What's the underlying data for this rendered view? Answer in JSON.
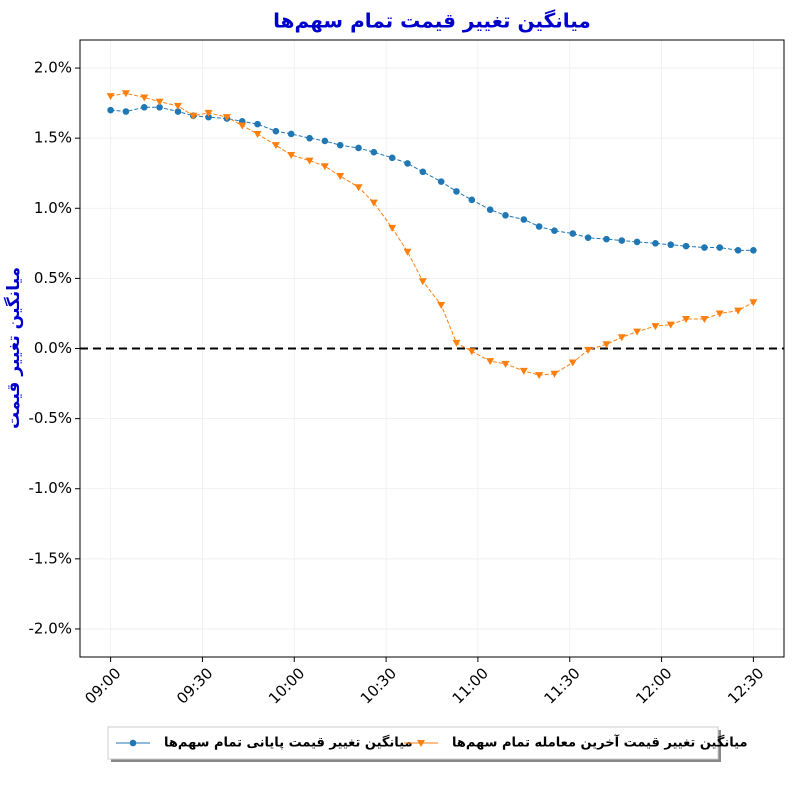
{
  "chart_data": {
    "type": "line",
    "title": "میانگین تغییر قیمت تمام سهم‌ها",
    "y_label": "میانگین تغییر قیمت",
    "x": [
      "09:00",
      "09:05",
      "09:11",
      "09:16",
      "09:22",
      "09:27",
      "09:32",
      "09:38",
      "09:43",
      "09:48",
      "09:54",
      "09:59",
      "10:05",
      "10:10",
      "10:15",
      "10:21",
      "10:26",
      "10:32",
      "10:37",
      "10:42",
      "10:48",
      "10:53",
      "10:58",
      "11:04",
      "11:09",
      "11:15",
      "11:20",
      "11:25",
      "11:31",
      "11:36",
      "11:42",
      "11:47",
      "11:52",
      "11:58",
      "12:03",
      "12:08",
      "12:14",
      "12:19",
      "12:25",
      "12:30"
    ],
    "series": [
      {
        "name": "میانگین تغییر قیمت پایانی تمام سهم‌ها",
        "color": "#1f77b4",
        "marker": "circle",
        "values": [
          1.7,
          1.69,
          1.72,
          1.72,
          1.69,
          1.66,
          1.65,
          1.64,
          1.62,
          1.6,
          1.55,
          1.53,
          1.5,
          1.48,
          1.45,
          1.43,
          1.4,
          1.36,
          1.32,
          1.26,
          1.19,
          1.12,
          1.06,
          0.99,
          0.95,
          0.92,
          0.87,
          0.84,
          0.82,
          0.79,
          0.78,
          0.77,
          0.76,
          0.75,
          0.74,
          0.73,
          0.72,
          0.72,
          0.7,
          0.7
        ]
      },
      {
        "name": "میانگین تغییر قیمت آخرین معامله تمام سهم‌ها",
        "color": "#ff7f0e",
        "marker": "triangle-down",
        "values": [
          1.8,
          1.82,
          1.79,
          1.76,
          1.73,
          1.66,
          1.68,
          1.65,
          1.59,
          1.53,
          1.45,
          1.38,
          1.34,
          1.3,
          1.23,
          1.15,
          1.04,
          0.86,
          0.69,
          0.48,
          0.31,
          0.04,
          -0.02,
          -0.09,
          -0.11,
          -0.16,
          -0.19,
          -0.18,
          -0.1,
          -0.01,
          0.03,
          0.08,
          0.12,
          0.16,
          0.17,
          0.21,
          0.21,
          0.25,
          0.27,
          0.33
        ]
      }
    ],
    "xlim": [
      "08:50",
      "12:40"
    ],
    "xticks": [
      "09:00",
      "09:30",
      "10:00",
      "10:30",
      "11:00",
      "11:30",
      "12:00",
      "12:30"
    ],
    "ylim": [
      -2.2,
      2.2
    ],
    "yticks": [
      {
        "value": -2.0,
        "label": "-2.0%"
      },
      {
        "value": -1.5,
        "label": "-1.5%"
      },
      {
        "value": -1.0,
        "label": "-1.0%"
      },
      {
        "value": -0.5,
        "label": "-0.5%"
      },
      {
        "value": 0.0,
        "label": "0.0%"
      },
      {
        "value": 0.5,
        "label": "0.5%"
      },
      {
        "value": 1.0,
        "label": "1.0%"
      },
      {
        "value": 1.5,
        "label": "1.5%"
      },
      {
        "value": 2.0,
        "label": "2.0%"
      }
    ],
    "hline": 0,
    "grid": true,
    "legend": "bottom"
  }
}
